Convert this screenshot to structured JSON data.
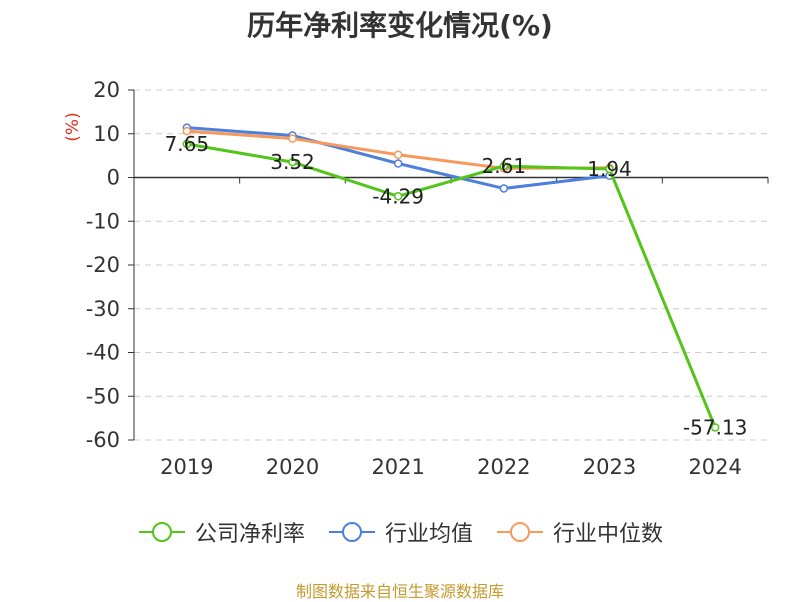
{
  "chart_data": {
    "type": "line",
    "title": "历年净利率变化情况(%)",
    "ylabel": "(%)",
    "xlabel": "",
    "categories": [
      "2019",
      "2020",
      "2021",
      "2022",
      "2023",
      "2024"
    ],
    "ylim": [
      -60,
      20
    ],
    "yticks": [
      20,
      10,
      0,
      -10,
      -20,
      -30,
      -40,
      -50,
      -60
    ],
    "grid": true,
    "legend_position": "bottom",
    "series": [
      {
        "name": "公司净利率",
        "color": "#52c41a",
        "values": [
          7.65,
          3.52,
          -4.29,
          2.61,
          1.94,
          -57.13
        ],
        "labels": [
          "7.65",
          "3.52",
          "-4.29",
          "2.61",
          "1.94",
          "-57.13"
        ]
      },
      {
        "name": "行业均值",
        "color": "#4e7fdc",
        "values": [
          11.4,
          9.6,
          3.2,
          -2.5,
          0.4,
          null
        ]
      },
      {
        "name": "行业中位数",
        "color": "#f59a5b",
        "values": [
          10.6,
          8.9,
          5.2,
          2.1,
          2.2,
          null
        ]
      }
    ]
  },
  "source": "制图数据来自恒生聚源数据库"
}
